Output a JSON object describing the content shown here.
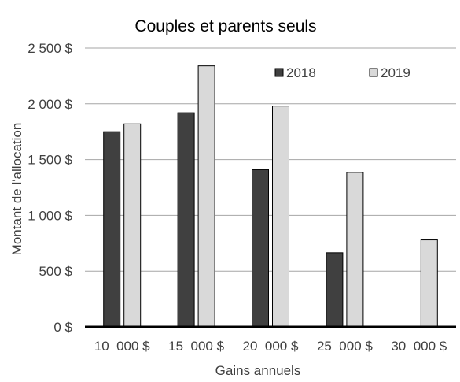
{
  "chart_data": {
    "type": "bar",
    "title": "Couples et parents seuls",
    "xlabel": "Gains annuels",
    "ylabel": "Montant de l'allocation",
    "categories": [
      "10  000 $",
      "15  000 $",
      "20  000 $",
      "25  000 $",
      "30  000 $"
    ],
    "series": [
      {
        "name": "2018",
        "values": [
          1750,
          1920,
          1410,
          665,
          0
        ],
        "color": "#404040"
      },
      {
        "name": "2019",
        "values": [
          1820,
          2340,
          1980,
          1385,
          780
        ],
        "color": "#d9d9d9"
      }
    ],
    "ylim": [
      0,
      2500
    ],
    "yticks": [
      0,
      500,
      1000,
      1500,
      2000,
      2500
    ],
    "ytick_labels": [
      "0 $",
      "500 $",
      "1 000 $",
      "1 500 $",
      "2 000 $",
      "2 500 $"
    ],
    "grid": true,
    "legend_position": "top-right"
  }
}
